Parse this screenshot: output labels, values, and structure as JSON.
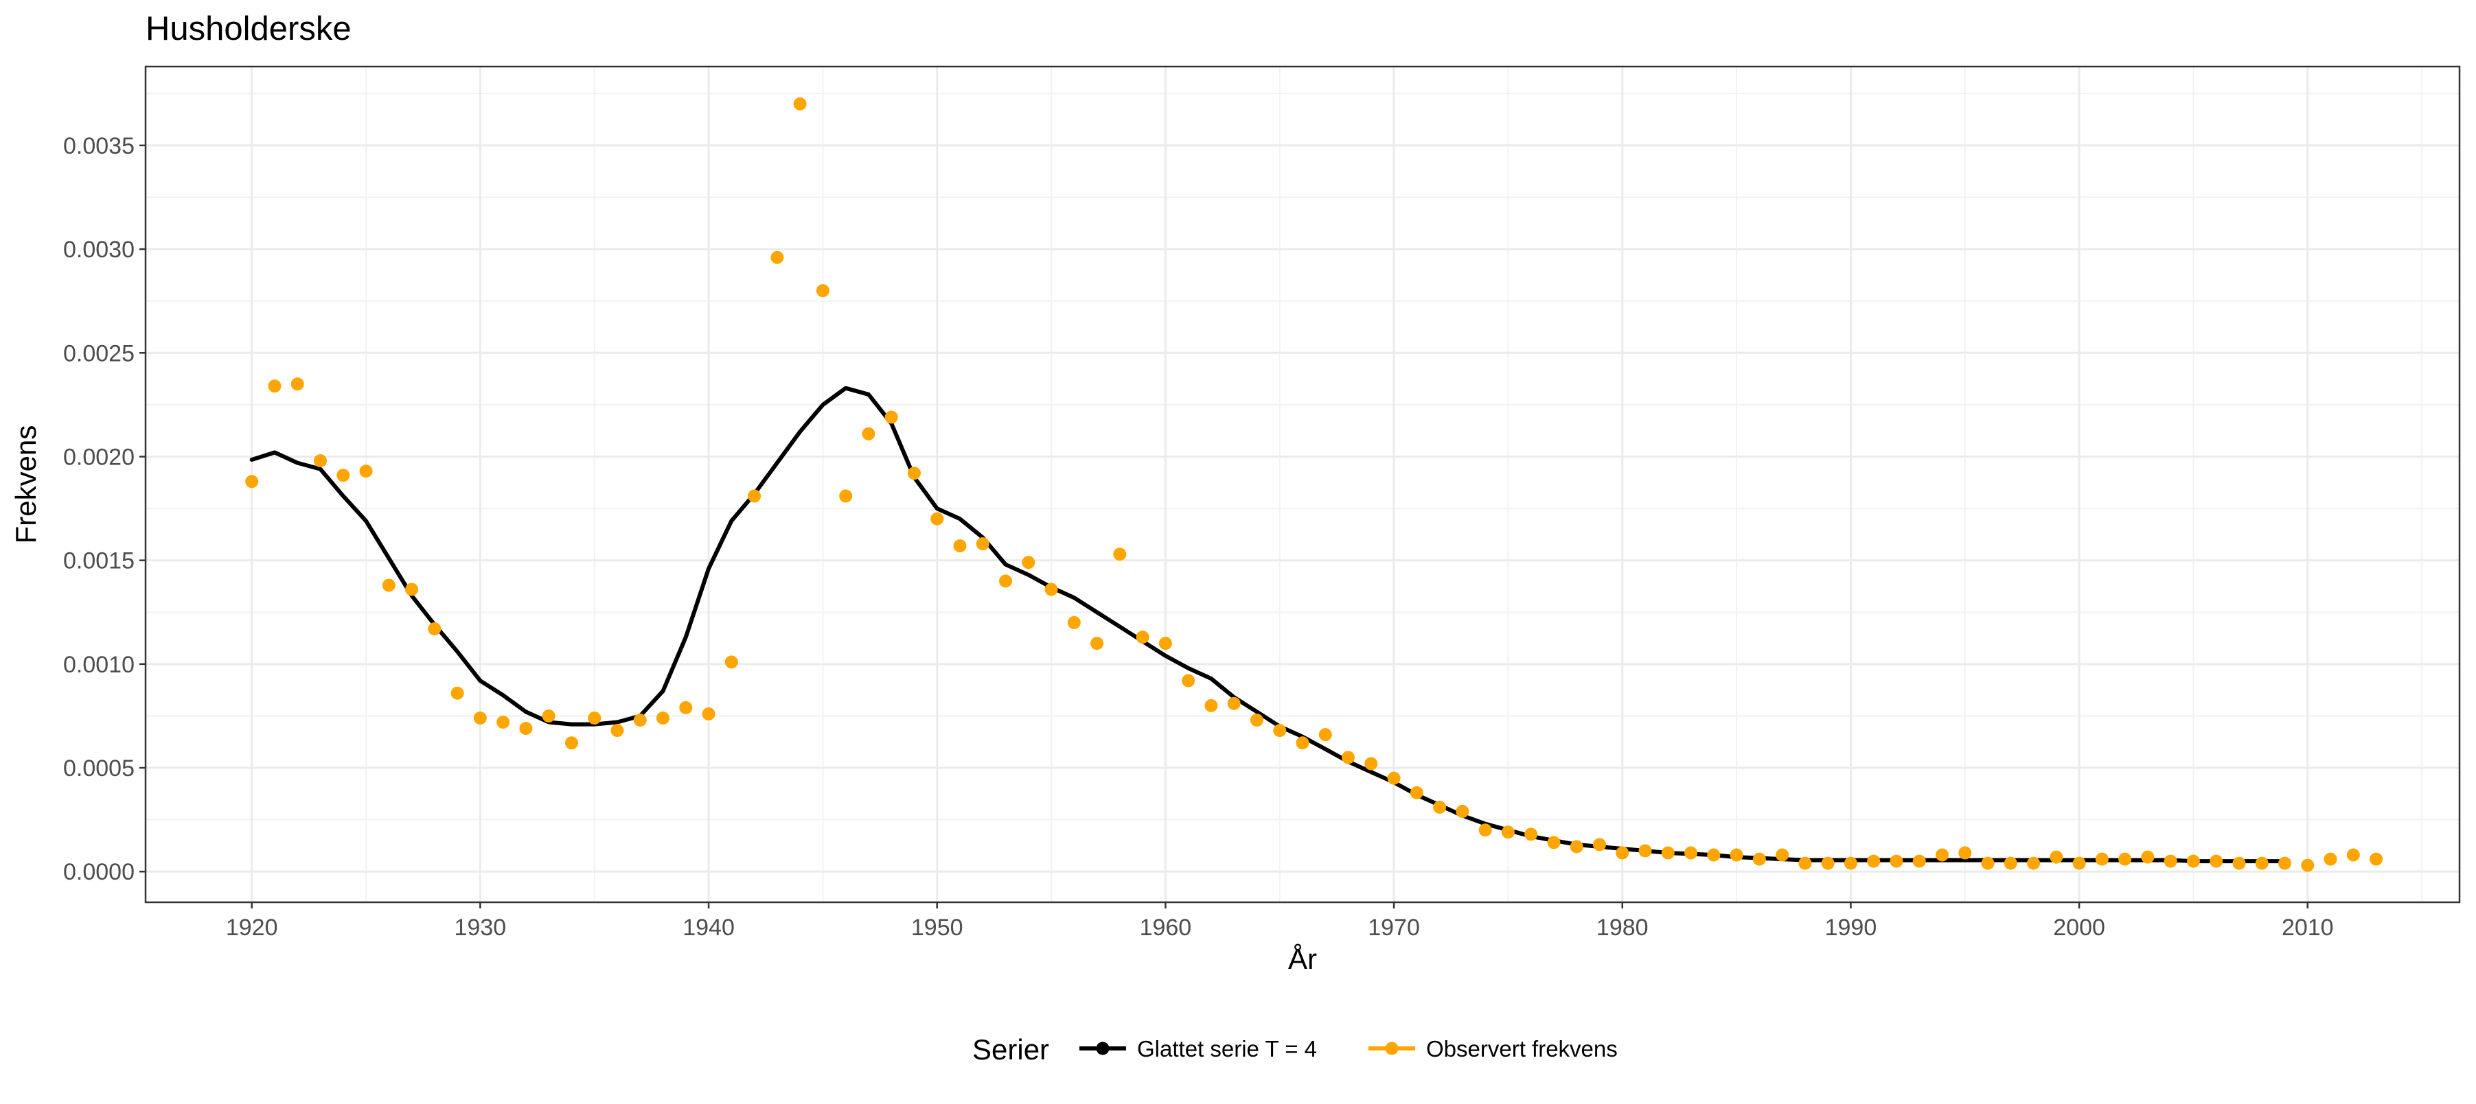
{
  "chart_data": {
    "type": "line",
    "title": "Husholderske",
    "xlabel": "År",
    "ylabel": "Frekvens",
    "xlim": [
      1915.35,
      2016.65
    ],
    "ylim": [
      -0.000148,
      0.00388
    ],
    "x_ticks": [
      1920,
      1930,
      1940,
      1950,
      1960,
      1970,
      1980,
      1990,
      2000,
      2010
    ],
    "x_tick_labels": [
      "1920",
      "1930",
      "1940",
      "1950",
      "1960",
      "1970",
      "1980",
      "1990",
      "2000",
      "2010"
    ],
    "y_ticks": [
      0,
      0.0005,
      0.001,
      0.0015,
      0.002,
      0.0025,
      0.003,
      0.0035
    ],
    "y_tick_labels": [
      "0.0000",
      "0.0005",
      "0.0010",
      "0.0015",
      "0.0020",
      "0.0025",
      "0.0030",
      "0.0035"
    ],
    "grid": true,
    "legend_position": "bottom",
    "legend_title": "Serier",
    "series": [
      {
        "name": "Glattet serie T  = 4",
        "kind": "line",
        "color": "#000000",
        "x": [
          1920,
          1921,
          1922,
          1923,
          1924,
          1925,
          1926,
          1927,
          1928,
          1929,
          1930,
          1931,
          1932,
          1933,
          1934,
          1935,
          1936,
          1937,
          1938,
          1939,
          1940,
          1941,
          1942,
          1943,
          1944,
          1945,
          1946,
          1947,
          1948,
          1949,
          1950,
          1951,
          1952,
          1953,
          1954,
          1955,
          1956,
          1957,
          1958,
          1959,
          1960,
          1961,
          1962,
          1963,
          1964,
          1965,
          1966,
          1967,
          1968,
          1969,
          1970,
          1971,
          1972,
          1973,
          1974,
          1975,
          1976,
          1977,
          1978,
          1979,
          1980,
          1981,
          1982,
          1983,
          1984,
          1985,
          1986,
          1987,
          1988,
          1989,
          1990,
          1991,
          1992,
          1993,
          1994,
          1995,
          1996,
          1997,
          1998,
          1999,
          2000,
          2001,
          2002,
          2003,
          2004,
          2005,
          2006,
          2007,
          2008,
          2009
        ],
        "values": [
          0.001985,
          0.00202,
          0.00197,
          0.00194,
          0.00181,
          0.00169,
          0.00151,
          0.00133,
          0.00119,
          0.00106,
          0.00092,
          0.00085,
          0.00077,
          0.00072,
          0.00071,
          0.00071,
          0.00072,
          0.00075,
          0.00087,
          0.00113,
          0.00146,
          0.00169,
          0.00182,
          0.00197,
          0.00212,
          0.00225,
          0.00233,
          0.0023,
          0.00216,
          0.0019,
          0.00175,
          0.0017,
          0.00161,
          0.00148,
          0.00143,
          0.00137,
          0.00132,
          0.00125,
          0.00118,
          0.00111,
          0.00104,
          0.00098,
          0.00093,
          0.00084,
          0.00077,
          0.0007,
          0.00065,
          0.00059,
          0.00053,
          0.00048,
          0.00043,
          0.00037,
          0.00032,
          0.00027,
          0.00023,
          0.0002,
          0.00017,
          0.00015,
          0.00013,
          0.00012,
          0.00011,
          0.0001,
          9e-05,
          8.5e-05,
          8e-05,
          7e-05,
          6.5e-05,
          6e-05,
          5.5e-05,
          5.5e-05,
          5.5e-05,
          5.5e-05,
          5.5e-05,
          5.5e-05,
          5.5e-05,
          5.5e-05,
          5.5e-05,
          5.5e-05,
          5.5e-05,
          5.5e-05,
          5.5e-05,
          5.5e-05,
          5.5e-05,
          5.5e-05,
          5.5e-05,
          5e-05,
          5e-05,
          5e-05,
          5e-05,
          5e-05
        ]
      },
      {
        "name": "Observert frekvens",
        "kind": "points",
        "color": "#FFA500",
        "x": [
          1920,
          1921,
          1922,
          1923,
          1924,
          1925,
          1926,
          1927,
          1928,
          1929,
          1930,
          1931,
          1932,
          1933,
          1934,
          1935,
          1936,
          1937,
          1938,
          1939,
          1940,
          1941,
          1942,
          1943,
          1944,
          1945,
          1946,
          1947,
          1948,
          1949,
          1950,
          1951,
          1952,
          1953,
          1954,
          1955,
          1956,
          1957,
          1958,
          1959,
          1960,
          1961,
          1962,
          1963,
          1964,
          1965,
          1966,
          1967,
          1968,
          1969,
          1970,
          1971,
          1972,
          1973,
          1974,
          1975,
          1976,
          1977,
          1978,
          1979,
          1980,
          1981,
          1982,
          1983,
          1984,
          1985,
          1986,
          1987,
          1988,
          1989,
          1990,
          1991,
          1992,
          1993,
          1994,
          1995,
          1996,
          1997,
          1998,
          1999,
          2000,
          2001,
          2002,
          2003,
          2004,
          2005,
          2006,
          2007,
          2008,
          2009,
          2010,
          2011,
          2012,
          2013
        ],
        "values": [
          0.00188,
          0.00234,
          0.00235,
          0.00198,
          0.00191,
          0.00193,
          0.00138,
          0.00136,
          0.00117,
          0.00086,
          0.00074,
          0.00072,
          0.00069,
          0.00075,
          0.00062,
          0.00074,
          0.00068,
          0.00073,
          0.00074,
          0.00079,
          0.00076,
          0.00101,
          0.00181,
          0.00296,
          0.0037,
          0.0028,
          0.00181,
          0.00211,
          0.00219,
          0.00192,
          0.0017,
          0.00157,
          0.00158,
          0.0014,
          0.00149,
          0.00136,
          0.0012,
          0.0011,
          0.00153,
          0.00113,
          0.0011,
          0.00092,
          0.0008,
          0.00081,
          0.00073,
          0.00068,
          0.00062,
          0.00066,
          0.00055,
          0.00052,
          0.00045,
          0.00038,
          0.00031,
          0.00029,
          0.0002,
          0.00019,
          0.00018,
          0.00014,
          0.00012,
          0.00013,
          9e-05,
          0.0001,
          9e-05,
          9e-05,
          8e-05,
          8e-05,
          6e-05,
          8e-05,
          4e-05,
          4e-05,
          4e-05,
          5e-05,
          5e-05,
          5e-05,
          8e-05,
          9e-05,
          4e-05,
          4e-05,
          4e-05,
          7e-05,
          4e-05,
          6e-05,
          6e-05,
          7e-05,
          5e-05,
          5e-05,
          5e-05,
          4e-05,
          4e-05,
          4e-05,
          3e-05,
          6e-05,
          8e-05,
          6e-05
        ]
      }
    ]
  }
}
